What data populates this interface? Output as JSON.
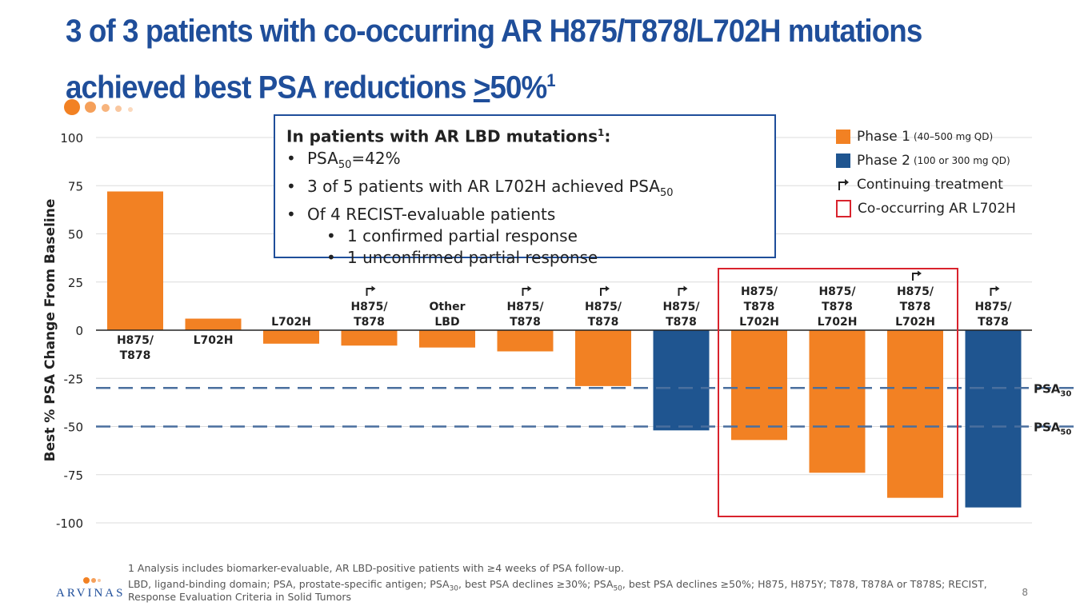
{
  "title": {
    "line1": "3 of 3 patients with co-occurring AR H875/T878/L702H mutations",
    "line2_prefix": "achieved best PSA reductions ",
    "line2_ge": ">",
    "line2_pct": "50%",
    "line2_sup": "1"
  },
  "colors": {
    "title": "#1f4e9a",
    "phase1": "#f28123",
    "phase2": "#1f5590",
    "highlight": "#d9232d",
    "threshold": "#4a6f9e"
  },
  "callout": {
    "heading": "In patients with AR LBD mutations",
    "heading_sup": "1",
    "heading_colon": ":",
    "b1_prefix": "PSA",
    "b1_sub": "50",
    "b1_suffix": "=42%",
    "b2_prefix": "3 of 5 patients with AR L702H achieved PSA",
    "b2_sub": "50",
    "b3": "Of 4 RECIST-evaluable patients",
    "b3a": "1 confirmed partial response",
    "b3b": "1 unconfirmed partial response"
  },
  "legend": {
    "phase1": "Phase 1",
    "phase1_dose": "(40–500 mg QD)",
    "phase2": "Phase 2",
    "phase2_dose": "(100 or 300 mg QD)",
    "continuing": "Continuing treatment",
    "cooccurring": "Co-occurring AR L702H",
    "continuing_icon": "turn-right-arrow-icon"
  },
  "chart_data": {
    "type": "bar",
    "ylabel": "Best % PSA Change From Baseline",
    "ylim": [
      -100,
      100
    ],
    "yticks": [
      "100",
      "75",
      "50",
      "25",
      "0",
      "-25",
      "-50",
      "-75",
      "-100"
    ],
    "ytick_values": [
      100,
      75,
      50,
      25,
      0,
      -25,
      -50,
      -75,
      -100
    ],
    "bars": [
      {
        "label": "H875/\nT878",
        "value": 72,
        "phase": "1",
        "continuing": false
      },
      {
        "label": "L702H",
        "value": 6,
        "phase": "1",
        "continuing": false
      },
      {
        "label": "L702H",
        "value": -7,
        "phase": "1",
        "continuing": false
      },
      {
        "label": "H875/\nT878",
        "value": -8,
        "phase": "1",
        "continuing": true
      },
      {
        "label": "Other\nLBD",
        "value": -9,
        "phase": "1",
        "continuing": false
      },
      {
        "label": "H875/\nT878",
        "value": -11,
        "phase": "1",
        "continuing": true
      },
      {
        "label": "H875/\nT878",
        "value": -29,
        "phase": "1",
        "continuing": true
      },
      {
        "label": "H875/\nT878",
        "value": -52,
        "phase": "2",
        "continuing": true
      },
      {
        "label": "H875/\nT878\nL702H",
        "value": -57,
        "phase": "1",
        "continuing": false
      },
      {
        "label": "H875/\nT878\nL702H",
        "value": -74,
        "phase": "1",
        "continuing": false
      },
      {
        "label": "H875/\nT878\nL702H",
        "value": -87,
        "phase": "1",
        "continuing": true
      },
      {
        "label": "H875/\nT878",
        "value": -92,
        "phase": "2",
        "continuing": true
      }
    ],
    "thresholds": [
      {
        "label": "PSA",
        "sub": "30",
        "value": -30
      },
      {
        "label": "PSA",
        "sub": "50",
        "value": -50
      }
    ],
    "highlight_bars": [
      8,
      9,
      10
    ]
  },
  "footnotes": {
    "f1": "1 Analysis includes biomarker-evaluable, AR LBD-positive patients with ≥4 weeks of PSA follow-up.",
    "f2a": "LBD, ligand-binding domain; PSA, prostate-specific antigen; PSA",
    "f2b": "30",
    "f2c": ", best PSA declines ≥30%; PSA",
    "f2d": "50",
    "f2e": ", best PSA declines ≥50%; H875, H875Y; T878, T878A or T878S; RECIST,",
    "f3": "Response Evaluation Criteria in Solid Tumors"
  },
  "page_number": "8",
  "logo_text": "ARVINAS"
}
